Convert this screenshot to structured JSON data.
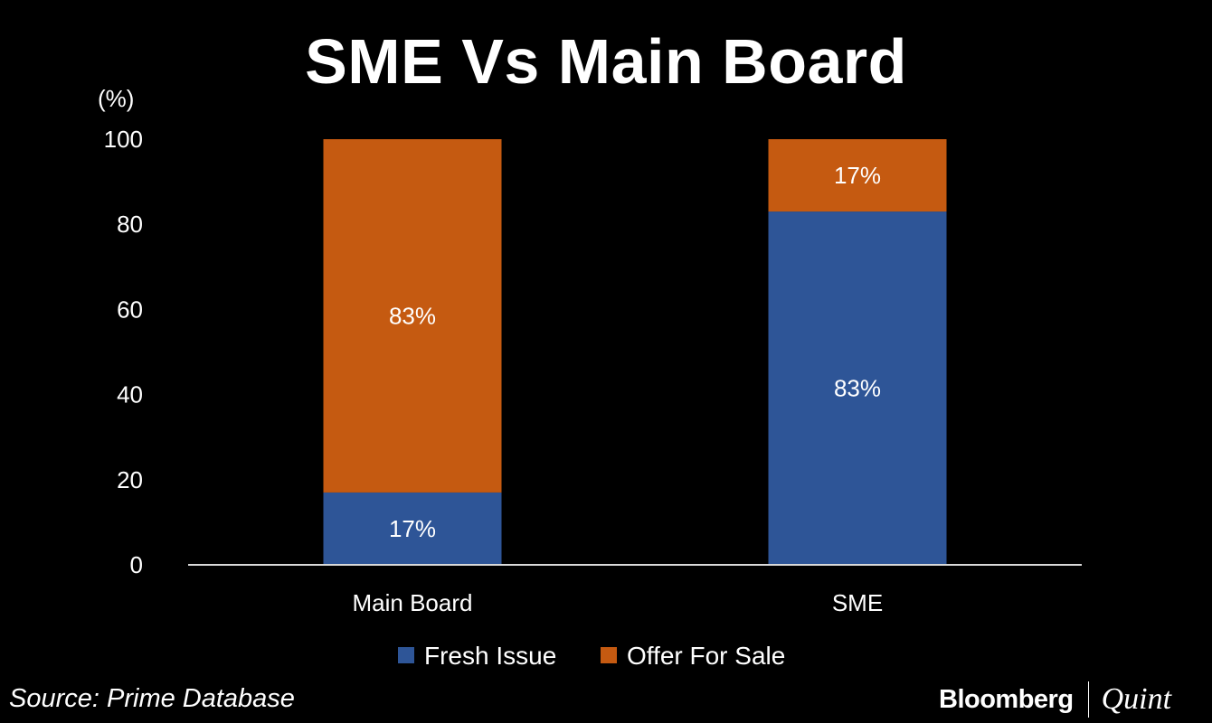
{
  "chart_data": {
    "type": "bar",
    "stacked": true,
    "title": "SME Vs Main Board",
    "ylabel": "(%)",
    "xlabel": "",
    "categories": [
      "Main Board",
      "SME"
    ],
    "series": [
      {
        "name": "Fresh Issue",
        "values": [
          17,
          83
        ],
        "labels": [
          "17%",
          "83%"
        ],
        "color": "#2E5597"
      },
      {
        "name": "Offer For Sale",
        "values": [
          83,
          17
        ],
        "labels": [
          "83%",
          "17%"
        ],
        "color": "#C55A11"
      }
    ],
    "ylim": [
      0,
      100
    ],
    "yticks": [
      0,
      20,
      40,
      60,
      80,
      100
    ],
    "grid": false,
    "legend_position": "bottom"
  },
  "footer": {
    "source": "Source: Prime Database",
    "brand_primary": "Bloomberg",
    "brand_secondary": "Quint"
  }
}
